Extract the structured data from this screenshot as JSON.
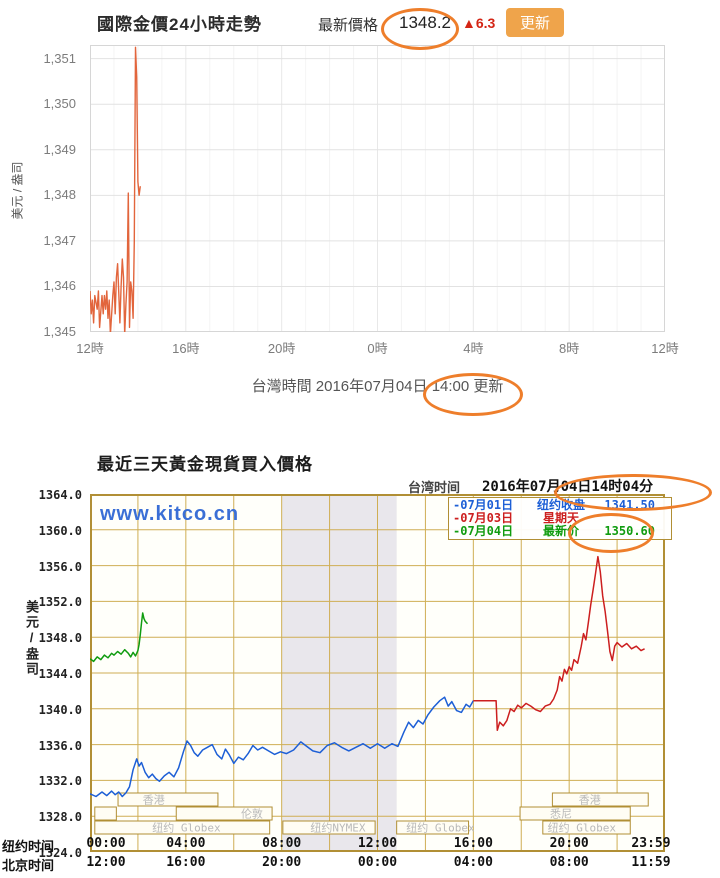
{
  "top": {
    "title": "國際金價24小時走勢",
    "price_label": "最新價格",
    "price": "1348.2",
    "change": "▲6.3",
    "button_label": "更新",
    "ylabel": "美元 / 盎司",
    "caption_prefix": "台灣時間 2016年07月04日",
    "caption_circled": "14:00 更新"
  },
  "bottom": {
    "title": "最近三天黃金現貨買入價格",
    "tz_label": "台湾时间",
    "datetime": "2016年07月04日14时04分",
    "watermark": "www.kitco.cn",
    "ylabel": "美元/盎司",
    "legend": [
      {
        "date": "-07月01日",
        "label": "纽约收盘",
        "value": "1341.50",
        "color": "#1d5fd6"
      },
      {
        "date": "-07月03日",
        "label": "星期天",
        "value": "",
        "color": "#cc1f1f"
      },
      {
        "date": "-07月04日",
        "label": "最新价",
        "value": "1350.60",
        "color": "#109c10"
      }
    ]
  },
  "colors": {
    "accent_ellipse": "#ee7e2b",
    "button": "#efa44b",
    "change_up": "#d42515",
    "grid_top": "#e2e2e2",
    "grid_bottom": "#cfae54",
    "border_bottom": "#b18f35",
    "session_label": "#b9b9b9",
    "band": "#e9e7ec"
  },
  "chart_data": [
    {
      "type": "line",
      "title": "國際金價24小時走勢",
      "xlabel": "台灣時間 (時)",
      "ylabel": "美元 / 盎司",
      "xlim": [
        12,
        36
      ],
      "ylim": [
        1345,
        1351.3
      ],
      "yticks": [
        1345,
        1346,
        1347,
        1348,
        1349,
        1350,
        1351
      ],
      "ytick_labels": [
        "1,351",
        "1,350",
        "1,349",
        "1,348",
        "1,347",
        "1,346",
        "1,345"
      ],
      "xtick_labels": [
        "12時",
        "16時",
        "20時",
        "0時",
        "4時",
        "8時",
        "12時"
      ],
      "grid": true,
      "series": [
        {
          "name": "國際金價",
          "color": "#e2653c",
          "points": [
            [
              12.0,
              1345.9
            ],
            [
              12.05,
              1345.4
            ],
            [
              12.1,
              1345.7
            ],
            [
              12.15,
              1345.2
            ],
            [
              12.2,
              1345.8
            ],
            [
              12.3,
              1345.5
            ],
            [
              12.35,
              1345.9
            ],
            [
              12.4,
              1345.1
            ],
            [
              12.5,
              1345.8
            ],
            [
              12.55,
              1345.4
            ],
            [
              12.6,
              1345.8
            ],
            [
              12.65,
              1345.5
            ],
            [
              12.7,
              1345.9
            ],
            [
              12.75,
              1345.3
            ],
            [
              12.8,
              1345.7
            ],
            [
              12.85,
              1344.95
            ],
            [
              12.95,
              1345.8
            ],
            [
              13.0,
              1346.1
            ],
            [
              13.05,
              1345.4
            ],
            [
              13.1,
              1346.2
            ],
            [
              13.15,
              1346.5
            ],
            [
              13.2,
              1345.9
            ],
            [
              13.25,
              1345.2
            ],
            [
              13.3,
              1346.0
            ],
            [
              13.35,
              1346.6
            ],
            [
              13.4,
              1346.2
            ],
            [
              13.45,
              1344.95
            ],
            [
              13.5,
              1345.6
            ],
            [
              13.55,
              1346.1
            ],
            [
              13.6,
              1348.05
            ],
            [
              13.65,
              1345.1
            ],
            [
              13.7,
              1346.1
            ],
            [
              13.75,
              1345.9
            ],
            [
              13.8,
              1345.3
            ],
            [
              13.85,
              1347.0
            ],
            [
              13.9,
              1351.25
            ],
            [
              13.95,
              1350.6
            ],
            [
              14.0,
              1348.3
            ],
            [
              14.05,
              1348.0
            ],
            [
              14.1,
              1348.2
            ]
          ]
        }
      ]
    },
    {
      "type": "line",
      "title": "最近三天黃金現貨買入價格",
      "ylabel": "美元/盎司",
      "xlim": [
        0,
        24
      ],
      "ylim": [
        1324,
        1364
      ],
      "yticks": [
        1324,
        1328,
        1332,
        1336,
        1340,
        1344,
        1348,
        1352,
        1356,
        1360,
        1364
      ],
      "ytick_labels": [
        "1364.0",
        "1360.0",
        "1356.0",
        "1352.0",
        "1348.0",
        "1344.0",
        "1340.0",
        "1336.0",
        "1332.0",
        "1328.0",
        "1324.0"
      ],
      "axis_rows": [
        "纽约时间",
        "北京时间"
      ],
      "ny_times": [
        "00:00",
        "04:00",
        "08:00",
        "12:00",
        "16:00",
        "20:00",
        "23:59"
      ],
      "bj_times": [
        "12:00",
        "16:00",
        "20:00",
        "00:00",
        "04:00",
        "08:00",
        "11:59"
      ],
      "grid": true,
      "band": {
        "x0": 8.0,
        "x1": 12.8,
        "color": "#e9e7ec"
      },
      "sessions": [
        {
          "row": 0,
          "x0": 1.17,
          "x1": 5.34,
          "label": "香港",
          "lx": 2.2
        },
        {
          "row": 0,
          "x0": 19.3,
          "x1": 23.3,
          "label": "香港",
          "lx": 20.4
        },
        {
          "row": 1,
          "x0": 0.2,
          "x1": 1.1,
          "label": "",
          "lx": 0
        },
        {
          "row": 1,
          "x0": 3.6,
          "x1": 7.6,
          "label": "伦敦",
          "lx": 6.3
        },
        {
          "row": 1,
          "x0": 17.95,
          "x1": 22.55,
          "label": "悉尼",
          "lx": 19.2
        },
        {
          "row": 2,
          "x0": 0.2,
          "x1": 7.5,
          "label": "纽约 Globex",
          "lx": 2.6
        },
        {
          "row": 2,
          "x0": 8.05,
          "x1": 11.9,
          "label": "纽约NYMEX",
          "lx": 9.2
        },
        {
          "row": 2,
          "x0": 12.8,
          "x1": 15.8,
          "label": "纽约 Globex",
          "lx": 13.2
        },
        {
          "row": 2,
          "x0": 18.9,
          "x1": 22.55,
          "label": "纽约 Globex",
          "lx": 19.1
        }
      ],
      "series": [
        {
          "name": "07月01日 纽约收盘 1341.50",
          "color": "#1d5fd6",
          "points": [
            [
              0,
              1330.5
            ],
            [
              0.25,
              1330.2
            ],
            [
              0.5,
              1330.7
            ],
            [
              0.7,
              1330.3
            ],
            [
              0.9,
              1330.8
            ],
            [
              1.05,
              1330.4
            ],
            [
              1.2,
              1330.7
            ],
            [
              1.35,
              1330.2
            ],
            [
              1.5,
              1330.6
            ],
            [
              1.65,
              1331.3
            ],
            [
              1.8,
              1333.2
            ],
            [
              1.95,
              1334.4
            ],
            [
              2.05,
              1333.6
            ],
            [
              2.15,
              1334.0
            ],
            [
              2.3,
              1332.9
            ],
            [
              2.45,
              1332.3
            ],
            [
              2.6,
              1332.7
            ],
            [
              2.75,
              1332.2
            ],
            [
              2.9,
              1331.9
            ],
            [
              3.1,
              1332.5
            ],
            [
              3.3,
              1332.9
            ],
            [
              3.5,
              1332.4
            ],
            [
              3.7,
              1333.4
            ],
            [
              3.9,
              1335.2
            ],
            [
              4.05,
              1336.4
            ],
            [
              4.2,
              1335.9
            ],
            [
              4.35,
              1335.1
            ],
            [
              4.5,
              1334.7
            ],
            [
              4.7,
              1335.4
            ],
            [
              4.9,
              1335.7
            ],
            [
              5.1,
              1336.0
            ],
            [
              5.3,
              1334.9
            ],
            [
              5.5,
              1334.4
            ],
            [
              5.65,
              1335.5
            ],
            [
              5.8,
              1334.9
            ],
            [
              6.0,
              1333.9
            ],
            [
              6.2,
              1334.6
            ],
            [
              6.4,
              1334.3
            ],
            [
              6.6,
              1335.0
            ],
            [
              6.8,
              1335.9
            ],
            [
              7.0,
              1335.4
            ],
            [
              7.2,
              1335.7
            ],
            [
              7.45,
              1335.3
            ],
            [
              7.7,
              1334.9
            ],
            [
              7.95,
              1335.2
            ],
            [
              8.2,
              1335.0
            ],
            [
              8.5,
              1335.4
            ],
            [
              8.8,
              1336.3
            ],
            [
              9.0,
              1335.9
            ],
            [
              9.3,
              1335.3
            ],
            [
              9.6,
              1335.1
            ],
            [
              9.9,
              1335.9
            ],
            [
              10.2,
              1336.2
            ],
            [
              10.5,
              1335.7
            ],
            [
              10.8,
              1335.3
            ],
            [
              11.1,
              1335.7
            ],
            [
              11.4,
              1336.1
            ],
            [
              11.7,
              1335.6
            ],
            [
              12.0,
              1336.1
            ],
            [
              12.3,
              1335.6
            ],
            [
              12.6,
              1336.1
            ],
            [
              12.85,
              1335.8
            ],
            [
              13.1,
              1337.4
            ],
            [
              13.3,
              1338.5
            ],
            [
              13.5,
              1337.9
            ],
            [
              13.7,
              1338.7
            ],
            [
              13.9,
              1338.3
            ],
            [
              14.1,
              1339.3
            ],
            [
              14.35,
              1340.2
            ],
            [
              14.6,
              1340.9
            ],
            [
              14.8,
              1341.3
            ],
            [
              14.95,
              1340.3
            ],
            [
              15.1,
              1340.8
            ],
            [
              15.3,
              1339.8
            ],
            [
              15.5,
              1339.6
            ],
            [
              15.7,
              1340.5
            ],
            [
              15.85,
              1340.2
            ],
            [
              16.0,
              1340.9
            ]
          ]
        },
        {
          "name": "07月03日 星期天",
          "color": "#cc1f1f",
          "points": [
            [
              16.0,
              1340.9
            ],
            [
              16.95,
              1340.9
            ],
            [
              17.0,
              1337.6
            ],
            [
              17.1,
              1338.5
            ],
            [
              17.25,
              1338.1
            ],
            [
              17.4,
              1338.7
            ],
            [
              17.55,
              1340.0
            ],
            [
              17.7,
              1339.7
            ],
            [
              17.85,
              1340.4
            ],
            [
              18.0,
              1340.1
            ],
            [
              18.2,
              1340.6
            ],
            [
              18.4,
              1340.3
            ],
            [
              18.6,
              1339.9
            ],
            [
              18.8,
              1339.7
            ],
            [
              19.0,
              1340.3
            ],
            [
              19.2,
              1340.5
            ],
            [
              19.35,
              1341.1
            ],
            [
              19.5,
              1342.1
            ],
            [
              19.6,
              1343.6
            ],
            [
              19.7,
              1343.1
            ],
            [
              19.8,
              1344.4
            ],
            [
              19.9,
              1343.9
            ],
            [
              20.0,
              1344.7
            ],
            [
              20.1,
              1344.3
            ],
            [
              20.2,
              1345.5
            ],
            [
              20.35,
              1345.1
            ],
            [
              20.5,
              1346.9
            ],
            [
              20.6,
              1348.4
            ],
            [
              20.7,
              1347.7
            ],
            [
              20.8,
              1349.6
            ],
            [
              20.9,
              1351.6
            ],
            [
              21.0,
              1353.3
            ],
            [
              21.1,
              1355.1
            ],
            [
              21.2,
              1357.0
            ],
            [
              21.3,
              1355.3
            ],
            [
              21.4,
              1352.6
            ],
            [
              21.5,
              1350.9
            ],
            [
              21.6,
              1348.7
            ],
            [
              21.7,
              1346.4
            ],
            [
              21.8,
              1345.4
            ],
            [
              21.9,
              1347.0
            ],
            [
              22.0,
              1347.4
            ],
            [
              22.2,
              1346.9
            ],
            [
              22.4,
              1347.3
            ],
            [
              22.6,
              1346.7
            ],
            [
              22.8,
              1347.0
            ],
            [
              23.0,
              1346.5
            ],
            [
              23.15,
              1346.7
            ]
          ]
        },
        {
          "name": "07月04日 最新价 1350.60",
          "color": "#109c10",
          "points": [
            [
              0,
              1345.6
            ],
            [
              0.15,
              1345.3
            ],
            [
              0.3,
              1345.8
            ],
            [
              0.45,
              1345.5
            ],
            [
              0.6,
              1346.0
            ],
            [
              0.75,
              1345.7
            ],
            [
              0.9,
              1346.2
            ],
            [
              1.0,
              1346.0
            ],
            [
              1.15,
              1346.4
            ],
            [
              1.3,
              1346.1
            ],
            [
              1.45,
              1346.6
            ],
            [
              1.6,
              1346.2
            ],
            [
              1.7,
              1345.8
            ],
            [
              1.8,
              1346.3
            ],
            [
              1.9,
              1345.9
            ],
            [
              2.0,
              1346.5
            ],
            [
              2.05,
              1347.2
            ],
            [
              2.1,
              1348.3
            ],
            [
              2.15,
              1349.6
            ],
            [
              2.2,
              1350.7
            ],
            [
              2.25,
              1350.1
            ],
            [
              2.3,
              1349.8
            ],
            [
              2.4,
              1349.5
            ]
          ]
        }
      ]
    }
  ]
}
